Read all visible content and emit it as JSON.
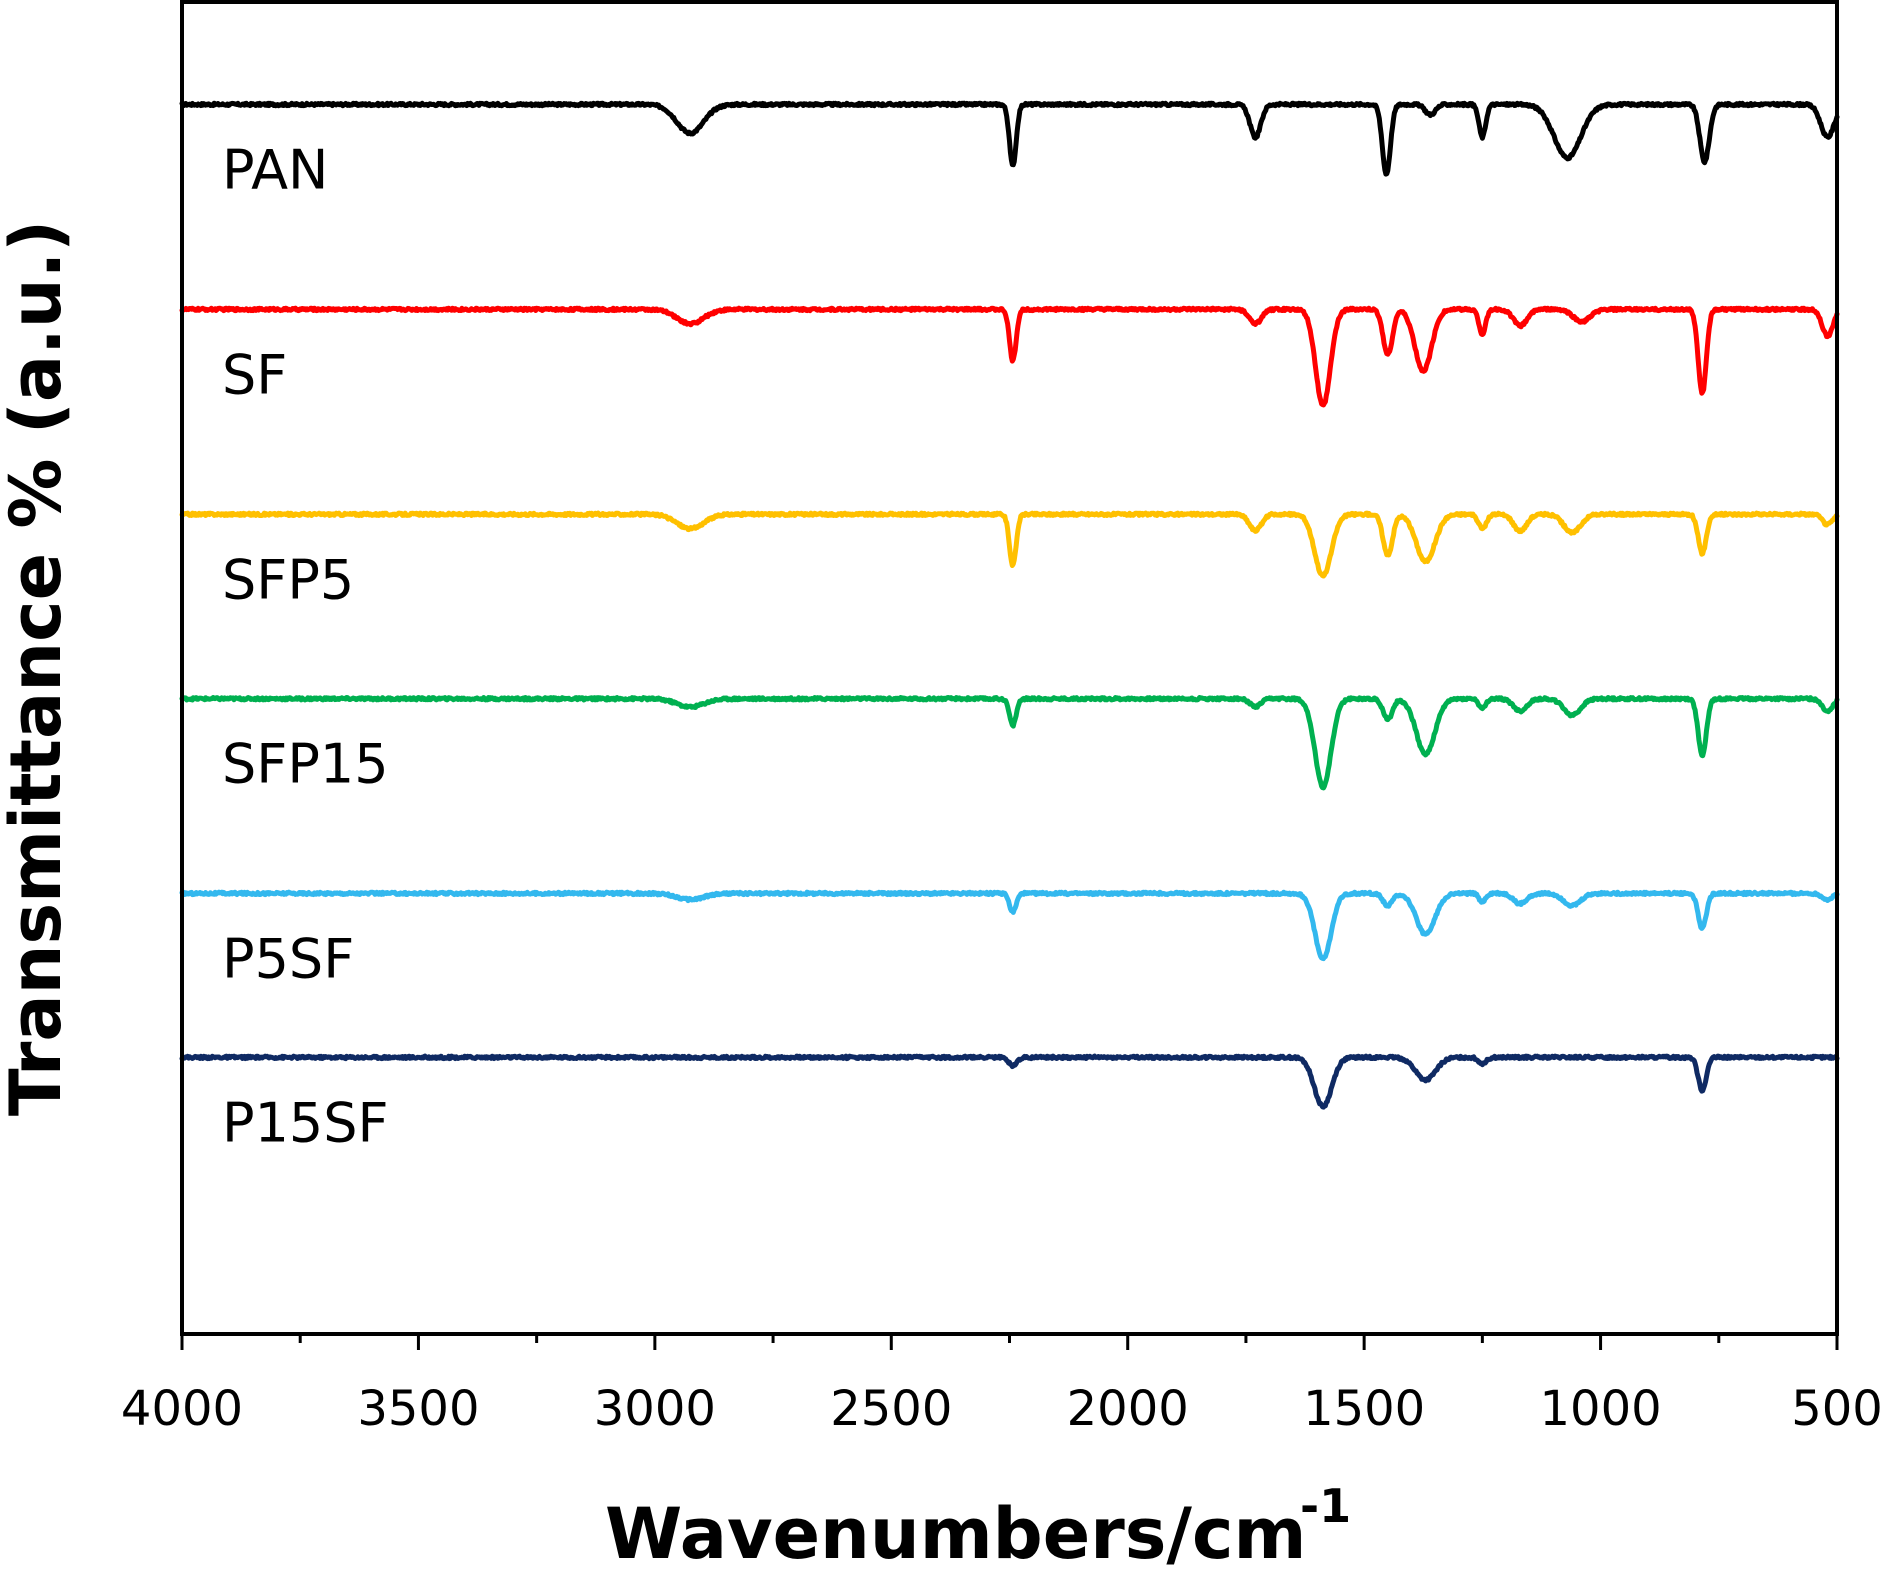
{
  "chart_data": {
    "type": "line",
    "xlabel": "Wavenumbers/cm",
    "xlabel_superscript": "-1",
    "ylabel": "Transmittance % (a.u.)",
    "xlim": [
      4000,
      500
    ],
    "x_reversed": true,
    "ylim": [
      0,
      6.5
    ],
    "y_ticks_shown": false,
    "xticks": [
      {
        "value": 4000,
        "label": "4000"
      },
      {
        "value": 3500,
        "label": "3500"
      },
      {
        "value": 3000,
        "label": "3000"
      },
      {
        "value": 2500,
        "label": "2500"
      },
      {
        "value": 2000,
        "label": "2000"
      },
      {
        "value": 1500,
        "label": "1500"
      },
      {
        "value": 1000,
        "label": "1000"
      },
      {
        "value": 500,
        "label": "500"
      }
    ],
    "series": [
      {
        "name": "PAN",
        "color": "#000000",
        "baseline": 6.0,
        "peaks": [
          [
            2925,
            0.14,
            40
          ],
          [
            2243,
            0.3,
            10
          ],
          [
            1730,
            0.16,
            16
          ],
          [
            1453,
            0.34,
            12
          ],
          [
            1360,
            0.05,
            15
          ],
          [
            1250,
            0.16,
            10
          ],
          [
            1070,
            0.26,
            40
          ],
          [
            780,
            0.28,
            14
          ],
          [
            520,
            0.16,
            20
          ]
        ]
      },
      {
        "name": "SF",
        "color": "#ff0000",
        "baseline": 5.0,
        "peaks": [
          [
            2925,
            0.07,
            40
          ],
          [
            2243,
            0.25,
            10
          ],
          [
            1730,
            0.07,
            18
          ],
          [
            1587,
            0.47,
            22
          ],
          [
            1450,
            0.22,
            14
          ],
          [
            1375,
            0.3,
            25
          ],
          [
            1250,
            0.12,
            10
          ],
          [
            1170,
            0.08,
            20
          ],
          [
            1040,
            0.06,
            25
          ],
          [
            785,
            0.41,
            12
          ],
          [
            520,
            0.13,
            16
          ]
        ]
      },
      {
        "name": "SFP5",
        "color": "#ffc000",
        "baseline": 4.0,
        "peaks": [
          [
            2925,
            0.07,
            40
          ],
          [
            2243,
            0.25,
            10
          ],
          [
            1730,
            0.08,
            18
          ],
          [
            1587,
            0.3,
            25
          ],
          [
            1450,
            0.2,
            14
          ],
          [
            1370,
            0.23,
            28
          ],
          [
            1250,
            0.07,
            12
          ],
          [
            1170,
            0.08,
            20
          ],
          [
            1060,
            0.09,
            25
          ],
          [
            785,
            0.19,
            12
          ],
          [
            520,
            0.05,
            15
          ]
        ]
      },
      {
        "name": "SFP15",
        "color": "#00b050",
        "baseline": 3.1,
        "peaks": [
          [
            2925,
            0.04,
            40
          ],
          [
            2243,
            0.13,
            10
          ],
          [
            1730,
            0.04,
            16
          ],
          [
            1587,
            0.43,
            24
          ],
          [
            1450,
            0.1,
            14
          ],
          [
            1370,
            0.27,
            28
          ],
          [
            1250,
            0.05,
            10
          ],
          [
            1170,
            0.06,
            20
          ],
          [
            1060,
            0.08,
            25
          ],
          [
            785,
            0.28,
            12
          ],
          [
            520,
            0.06,
            15
          ]
        ]
      },
      {
        "name": "P5SF",
        "color": "#33b8ee",
        "baseline": 2.15,
        "peaks": [
          [
            2925,
            0.03,
            40
          ],
          [
            2243,
            0.09,
            10
          ],
          [
            1587,
            0.32,
            24
          ],
          [
            1450,
            0.06,
            14
          ],
          [
            1370,
            0.2,
            28
          ],
          [
            1250,
            0.04,
            10
          ],
          [
            1170,
            0.05,
            20
          ],
          [
            1060,
            0.06,
            25
          ],
          [
            785,
            0.17,
            12
          ],
          [
            520,
            0.03,
            15
          ]
        ]
      },
      {
        "name": "P15SF",
        "color": "#0f2a63",
        "baseline": 1.35,
        "peaks": [
          [
            2243,
            0.04,
            12
          ],
          [
            1587,
            0.24,
            26
          ],
          [
            1370,
            0.11,
            30
          ],
          [
            1250,
            0.03,
            12
          ],
          [
            785,
            0.16,
            12
          ]
        ]
      }
    ]
  }
}
